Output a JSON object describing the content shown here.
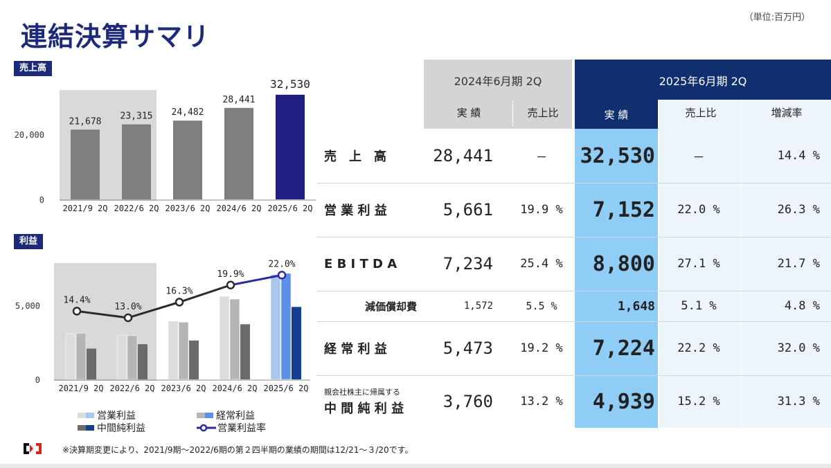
{
  "header": {
    "title": "連結決算サマリ",
    "unit": "（単位:百万円）"
  },
  "sales_section": {
    "label": "売上高"
  },
  "profit_section": {
    "label": "利益"
  },
  "chart_data": [
    {
      "type": "bar",
      "categories": [
        "2021/9 2Q",
        "2022/6 2Q",
        "2023/6 2Q",
        "2024/6 2Q",
        "2025/6 2Q"
      ],
      "values": [
        21678,
        23315,
        24482,
        28441,
        32530
      ],
      "value_labels": [
        "21,678",
        "23,315",
        "24,482",
        "28,441",
        "32,530"
      ],
      "yticks": [
        "0",
        "20,000"
      ],
      "ylim": [
        0,
        34000
      ],
      "colors": [
        "#7f7f7f",
        "#7f7f7f",
        "#7f7f7f",
        "#7f7f7f",
        "#1f1f82"
      ]
    },
    {
      "type": "bar",
      "categories": [
        "2021/9 2Q",
        "2022/6 2Q",
        "2023/6 2Q",
        "2024/6 2Q",
        "2025/6 2Q"
      ],
      "series": [
        {
          "name": "営業利益",
          "values": [
            3120,
            3030,
            3980,
            5661,
            7152
          ]
        },
        {
          "name": "経常利益",
          "values": [
            3140,
            2980,
            3900,
            5473,
            7224
          ]
        },
        {
          "name": "中間純利益",
          "values": [
            2100,
            2400,
            2650,
            3760,
            4939
          ]
        },
        {
          "name": "営業利益率",
          "values": [
            14.4,
            13.0,
            16.3,
            19.9,
            22.0
          ],
          "labels": [
            "14.4%",
            "13.0%",
            "16.3%",
            "19.9%",
            "22.0%"
          ]
        }
      ],
      "yticks": [
        "0",
        "5,000"
      ],
      "ylim": [
        0,
        8400
      ],
      "line_range": [
        0,
        26
      ],
      "colors": {
        "grey1": "#dcdcdc",
        "grey2": "#b5b5b5",
        "grey3": "#6b6b6b",
        "blue1": "#a8c6ef",
        "blue2": "#5c8fe6",
        "blue3": "#123f91",
        "line": "#2a2a2a",
        "line_last": "#2b2b9a"
      }
    }
  ],
  "legend": {
    "items": [
      "営業利益",
      "経常利益",
      "中間純利益",
      "営業利益率"
    ]
  },
  "table": {
    "period_prev": "2024年6月期 2Q",
    "period_curr": "2025年6月期 2Q",
    "col_actual": "実 績",
    "col_ratio": "売上比",
    "col_growth": "増減率",
    "rows": [
      {
        "label": "売　上　高",
        "prev": "28,441",
        "prev_ratio": "－",
        "curr": "32,530",
        "curr_ratio": "－",
        "growth": "14.4 %"
      },
      {
        "label": "営 業 利 益",
        "prev": "5,661",
        "prev_ratio": "19.9 %",
        "curr": "7,152",
        "curr_ratio": "22.0 %",
        "growth": "26.3 %"
      },
      {
        "label": "E B I T D A",
        "prev": "7,234",
        "prev_ratio": "25.4 %",
        "curr": "8,800",
        "curr_ratio": "27.1 %",
        "growth": "21.7 %"
      },
      {
        "label": "減価償却費",
        "prev": "1,572",
        "prev_ratio": "5.5 %",
        "curr": "1,648",
        "curr_ratio": "5.1 %",
        "growth": "4.8 %"
      },
      {
        "label": "経 常 利 益",
        "prev": "5,473",
        "prev_ratio": "19.2 %",
        "curr": "7,224",
        "curr_ratio": "22.2 %",
        "growth": "32.0 %"
      },
      {
        "label_small": "親会社株主に帰属する",
        "label": "中 間 純 利 益",
        "prev": "3,760",
        "prev_ratio": "13.2 %",
        "curr": "4,939",
        "curr_ratio": "15.2 %",
        "growth": "31.3 %"
      }
    ]
  },
  "footer": {
    "note": "※決算期変更により、2021/9期～2022/6期の第２四半期の業績の期間は12/21～３/20です。"
  }
}
